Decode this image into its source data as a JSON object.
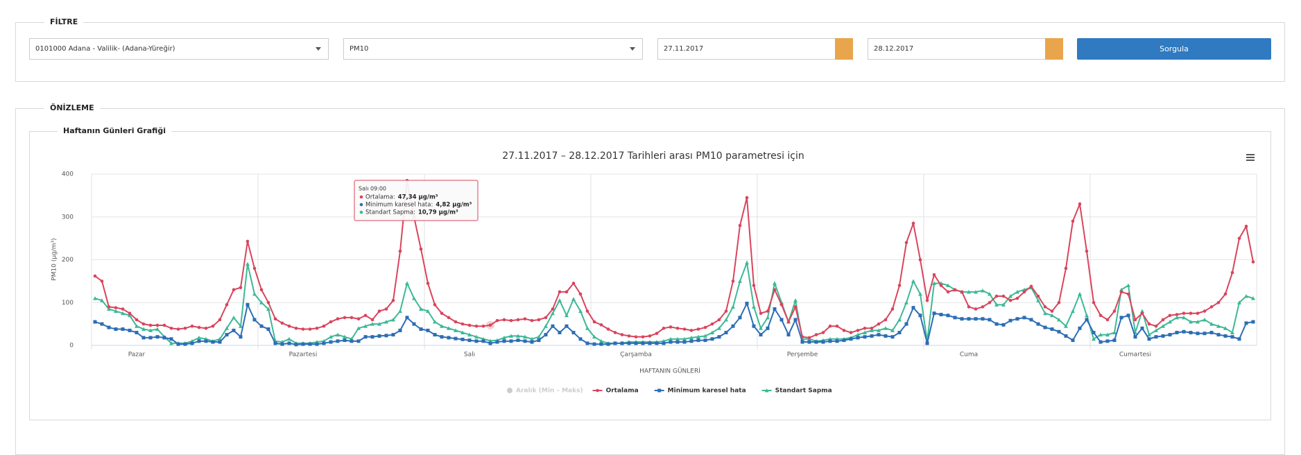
{
  "filter": {
    "legend": "FİLTRE",
    "station": "0101000 Adana - Valilik- (Adana-Yüreğir)",
    "parameter": "PM10",
    "start_date": "27.11.2017",
    "end_date": "28.12.2017",
    "button": "Sorgula"
  },
  "preview": {
    "legend": "ÖNİZLEME",
    "panel_title": "Haftanın Günleri Grafiği"
  },
  "chart_data": {
    "type": "line",
    "title": "27.11.2017 – 28.12.2017 Tarihleri arası PM10 parametresi için",
    "y_label": "PM10 (µg/m³)",
    "x_label": "HAFTANIN GÜNLERİ",
    "ylim": [
      0,
      400
    ],
    "yticks": [
      0,
      100,
      200,
      300,
      400
    ],
    "grid": true,
    "legend_position": "bottom",
    "legend_hidden_series": "Aralık (Min – Maks)",
    "tooltip": {
      "title": "Salı 09:00",
      "items": [
        {
          "label": "Ortalama:",
          "value": "47,34 µg/m³"
        },
        {
          "label": "Minimum karesel hata:",
          "value": "4,82 µg/m³"
        },
        {
          "label": "Standart Sapma:",
          "value": "10,79 µg/m³"
        }
      ]
    },
    "categories": [
      null,
      null,
      null,
      null,
      null,
      null,
      "Pazar",
      null,
      null,
      null,
      null,
      null,
      null,
      null,
      null,
      null,
      null,
      null,
      null,
      null,
      null,
      null,
      null,
      null,
      null,
      null,
      null,
      null,
      null,
      null,
      "Pazartesi",
      null,
      null,
      null,
      null,
      null,
      null,
      null,
      null,
      null,
      null,
      null,
      null,
      null,
      null,
      null,
      null,
      null,
      null,
      null,
      null,
      null,
      null,
      null,
      "Salı",
      null,
      null,
      null,
      null,
      null,
      null,
      null,
      null,
      null,
      null,
      null,
      null,
      null,
      null,
      null,
      null,
      null,
      null,
      null,
      null,
      null,
      null,
      null,
      "Çarşamba",
      null,
      null,
      null,
      null,
      null,
      null,
      null,
      null,
      null,
      null,
      null,
      null,
      null,
      null,
      null,
      null,
      null,
      null,
      null,
      null,
      null,
      null,
      null,
      "Perşembe",
      null,
      null,
      null,
      null,
      null,
      null,
      null,
      null,
      null,
      null,
      null,
      null,
      null,
      null,
      null,
      null,
      null,
      null,
      null,
      null,
      null,
      null,
      null,
      "Cuma",
      null,
      null,
      null,
      null,
      null,
      null,
      null,
      null,
      null,
      null,
      null,
      null,
      null,
      null,
      null,
      null,
      null,
      null,
      null,
      null,
      null,
      null,
      null,
      "Cumartesi",
      null,
      null,
      null,
      null,
      null,
      null,
      null,
      null,
      null,
      null,
      null,
      null,
      null,
      null,
      null,
      null,
      null
    ],
    "series": [
      {
        "name": "Ortalama",
        "color": "#d9445c",
        "marker": "circle",
        "values": [
          162,
          150,
          90,
          88,
          85,
          75,
          60,
          50,
          47,
          47,
          47,
          40,
          38,
          40,
          45,
          42,
          40,
          45,
          60,
          95,
          130,
          135,
          243,
          180,
          130,
          100,
          62,
          52,
          45,
          40,
          38,
          38,
          40,
          45,
          55,
          62,
          65,
          65,
          62,
          70,
          60,
          80,
          85,
          105,
          220,
          385,
          300,
          225,
          145,
          95,
          75,
          65,
          55,
          50,
          47,
          45,
          45,
          47.34,
          58,
          60,
          58,
          60,
          62,
          58,
          60,
          65,
          85,
          125,
          125,
          145,
          120,
          80,
          55,
          48,
          38,
          30,
          25,
          22,
          20,
          20,
          22,
          28,
          40,
          43,
          40,
          38,
          35,
          38,
          42,
          50,
          60,
          80,
          150,
          280,
          345,
          140,
          75,
          80,
          130,
          95,
          55,
          90,
          20,
          18,
          25,
          30,
          45,
          45,
          35,
          30,
          35,
          40,
          40,
          50,
          60,
          85,
          140,
          240,
          285,
          200,
          105,
          165,
          140,
          125,
          130,
          125,
          90,
          85,
          90,
          100,
          115,
          115,
          105,
          110,
          125,
          138,
          115,
          90,
          80,
          100,
          180,
          290,
          330,
          220,
          100,
          70,
          60,
          80,
          125,
          120,
          60,
          75,
          50,
          45,
          60,
          70,
          72,
          75,
          75,
          75,
          80,
          90,
          100,
          120,
          170,
          250,
          278,
          195
        ]
      },
      {
        "name": "Minimum karesel hata",
        "color": "#2c6db6",
        "marker": "square",
        "values": [
          55,
          50,
          42,
          38,
          38,
          35,
          30,
          18,
          18,
          20,
          18,
          15,
          3,
          3,
          5,
          10,
          10,
          8,
          8,
          25,
          35,
          20,
          95,
          60,
          45,
          38,
          5,
          3,
          5,
          2,
          3,
          3,
          3,
          5,
          8,
          10,
          12,
          10,
          10,
          20,
          20,
          22,
          23,
          25,
          35,
          65,
          50,
          38,
          35,
          25,
          20,
          18,
          16,
          14,
          12,
          10,
          10,
          4.82,
          8,
          10,
          10,
          12,
          10,
          8,
          12,
          25,
          45,
          30,
          45,
          30,
          15,
          5,
          3,
          3,
          3,
          5,
          5,
          5,
          5,
          5,
          5,
          5,
          5,
          8,
          8,
          8,
          10,
          12,
          12,
          15,
          20,
          30,
          45,
          65,
          98,
          45,
          25,
          40,
          85,
          60,
          25,
          60,
          8,
          8,
          8,
          8,
          10,
          10,
          12,
          15,
          18,
          20,
          22,
          25,
          22,
          20,
          30,
          50,
          88,
          70,
          5,
          75,
          72,
          70,
          65,
          62,
          62,
          62,
          62,
          60,
          50,
          48,
          58,
          62,
          65,
          60,
          50,
          42,
          38,
          32,
          22,
          12,
          40,
          60,
          30,
          8,
          10,
          12,
          65,
          70,
          20,
          40,
          15,
          20,
          22,
          25,
          30,
          32,
          30,
          28,
          28,
          30,
          25,
          22,
          20,
          15,
          52,
          55
        ]
      },
      {
        "name": "Standart Sapma",
        "color": "#3db896",
        "marker": "triangle",
        "values": [
          110,
          105,
          85,
          80,
          75,
          70,
          45,
          38,
          35,
          38,
          20,
          5,
          5,
          5,
          10,
          18,
          15,
          10,
          15,
          40,
          65,
          45,
          190,
          120,
          100,
          85,
          10,
          8,
          15,
          5,
          5,
          5,
          8,
          10,
          20,
          25,
          20,
          15,
          40,
          45,
          50,
          50,
          55,
          60,
          80,
          145,
          110,
          85,
          80,
          55,
          45,
          40,
          35,
          30,
          25,
          20,
          15,
          10.79,
          12,
          18,
          22,
          22,
          20,
          15,
          20,
          45,
          75,
          105,
          70,
          108,
          80,
          40,
          20,
          10,
          5,
          5,
          5,
          8,
          8,
          8,
          8,
          8,
          10,
          15,
          15,
          15,
          18,
          20,
          22,
          30,
          40,
          60,
          90,
          150,
          193,
          90,
          40,
          65,
          145,
          100,
          55,
          105,
          15,
          15,
          10,
          12,
          15,
          15,
          15,
          18,
          25,
          30,
          35,
          35,
          40,
          35,
          60,
          100,
          150,
          120,
          10,
          145,
          145,
          140,
          130,
          125,
          125,
          125,
          128,
          120,
          95,
          95,
          115,
          125,
          130,
          135,
          105,
          75,
          70,
          60,
          45,
          80,
          120,
          70,
          15,
          25,
          25,
          30,
          130,
          140,
          30,
          80,
          25,
          35,
          45,
          55,
          65,
          65,
          55,
          55,
          60,
          50,
          45,
          40,
          30,
          100,
          115,
          110
        ]
      }
    ]
  }
}
